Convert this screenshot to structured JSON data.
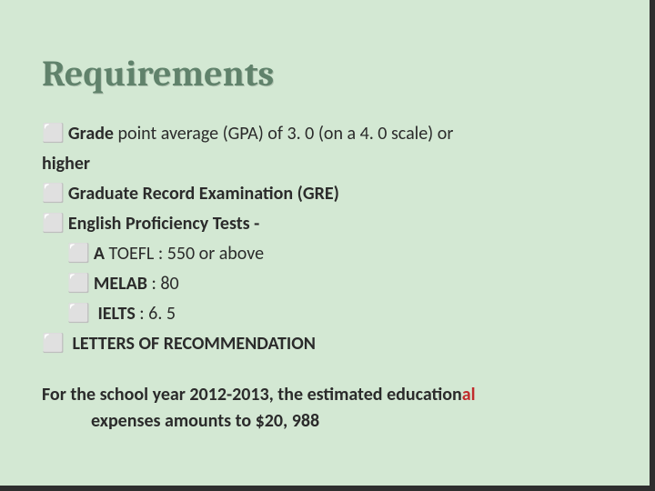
{
  "colors": {
    "background": "#d3e8d3",
    "border": "#2e2e2e",
    "title": "#60826b",
    "body": "#2b2b2b",
    "accent_red": "#c12c2c"
  },
  "bullet_glyph": "⬜",
  "title": "Requirements",
  "items": {
    "l1a_bold": "Grade",
    "l1a_rest": " point average (GPA)  of 3. 0 (on a 4. 0 scale) or",
    "l1a_cont": "higher",
    "l1b_bold": "Graduate",
    "l1b_rest": " Record Examination (GRE)",
    "l1c_bold": "English",
    "l1c_rest": " Proficiency Tests -",
    "l2a_bold": "A",
    "l2a_rest": " TOEFL : 550 or above",
    "l2b_bold": "MELAB",
    "l2b_rest": " : 80",
    "l2c_space": " ",
    "l2c_bold": "IELTS",
    "l2c_rest": " : 6. 5",
    "l1d_space": " ",
    "l1d_bold": "LETTERS",
    "l1d_rest": " OF RECOMMENDATION"
  },
  "footer": {
    "line1_pre": "For the school year 2012-2013, the estimated education",
    "line1_red": "al",
    "line2": "expenses  amounts to $20, 988"
  }
}
